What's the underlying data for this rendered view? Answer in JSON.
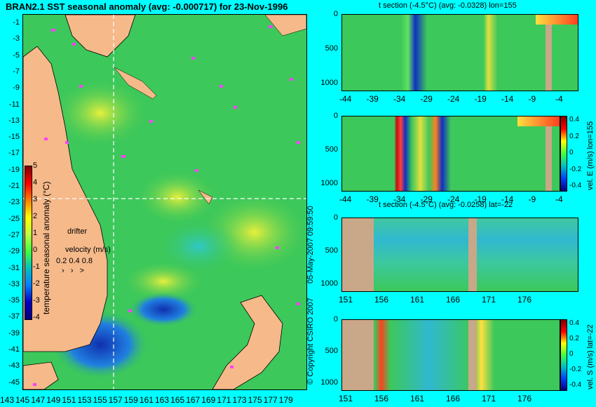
{
  "main_map": {
    "title": "BRAN2.1 SST seasonal anomaly (avg: -0.000717) for 23-Nov-1996",
    "lat_ticks": [
      "-1",
      "-3",
      "-5",
      "-7",
      "-9",
      "-11",
      "-13",
      "-15",
      "-17",
      "-19",
      "-21",
      "-23",
      "-25",
      "-27",
      "-29",
      "-31",
      "-33",
      "-35",
      "-37",
      "-39",
      "-41",
      "-43",
      "-45"
    ],
    "lon_ticks": [
      "143",
      "145",
      "147",
      "149",
      "151",
      "153",
      "155",
      "157",
      "159",
      "161",
      "163",
      "165",
      "167",
      "169",
      "171",
      "173",
      "175",
      "177",
      "179"
    ],
    "colorbar": {
      "label": "temperature seasonal anomaly (°C)",
      "ticks": [
        "5",
        "4",
        "3",
        "2",
        "1",
        "0",
        "-1",
        "-2",
        "-3",
        "-4"
      ]
    },
    "drifter_label": "drifter",
    "velocity_label": "velocity (m/s)",
    "velocity_scale": "0.2 0.4 0.8"
  },
  "panels": [
    {
      "title": "t section (-4.5°C) (avg: -0.0328) lon=155",
      "x_ticks": [
        "-44",
        "-39",
        "-34",
        "-29",
        "-24",
        "-19",
        "-14",
        "-9",
        "-4"
      ],
      "y_ticks": [
        "0",
        "500",
        "1000"
      ]
    },
    {
      "title": "",
      "x_ticks": [
        "-44",
        "-39",
        "-34",
        "-29",
        "-24",
        "-19",
        "-14",
        "-9",
        "-4"
      ],
      "y_ticks": [
        "0",
        "500",
        "1000"
      ],
      "colorbar_label": "vel. E (m/s) lon=155",
      "colorbar_ticks": [
        "0.4",
        "0.2",
        "0",
        "-0.2",
        "-0.4"
      ]
    },
    {
      "title": "t section (-4.5°C) (avg: -0.0258) lat=-22",
      "x_ticks": [
        "151",
        "156",
        "161",
        "166",
        "171",
        "176"
      ],
      "y_ticks": [
        "0",
        "500",
        "1000"
      ]
    },
    {
      "title": "",
      "x_ticks": [
        "151",
        "156",
        "161",
        "166",
        "171",
        "176"
      ],
      "y_ticks": [
        "0",
        "500",
        "1000"
      ],
      "colorbar_label": "vel. S (m/s) lat=-22",
      "colorbar_ticks": [
        "0.4",
        "0.2",
        "0",
        "-0.2",
        "-0.4"
      ]
    }
  ],
  "side_text": {
    "date": "05-May-2007 09:59:50",
    "copyright": "© Copyright CSIRO 2007"
  }
}
